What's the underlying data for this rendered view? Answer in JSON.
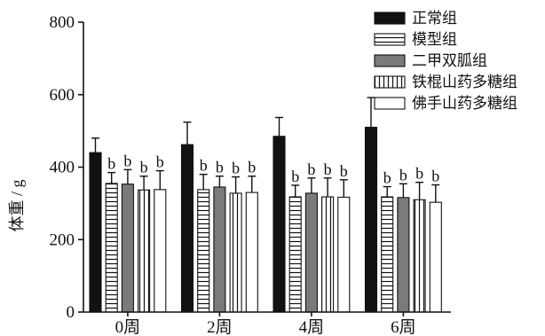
{
  "chart_data": {
    "type": "bar",
    "title": "",
    "xlabel": "",
    "ylabel": "体重 / g",
    "ylim": [
      0,
      800
    ],
    "yticks": [
      0,
      200,
      400,
      600,
      800
    ],
    "grid": false,
    "legend_position": "top-right",
    "categories": [
      "0周",
      "2周",
      "4周",
      "6周"
    ],
    "series": [
      {
        "name": "正常组",
        "pattern": "solid-black",
        "values": [
          440,
          462,
          485,
          510
        ],
        "errors": [
          40,
          62,
          52,
          82
        ],
        "labels": [
          "",
          "",
          "",
          ""
        ]
      },
      {
        "name": "模型组",
        "pattern": "hlines",
        "values": [
          355,
          338,
          318,
          318
        ],
        "errors": [
          30,
          42,
          32,
          28
        ],
        "labels": [
          "b",
          "b",
          "b",
          "b"
        ]
      },
      {
        "name": "二甲双胍组",
        "pattern": "solid-gray",
        "values": [
          353,
          345,
          328,
          316
        ],
        "errors": [
          40,
          30,
          42,
          38
        ],
        "labels": [
          "b",
          "b",
          "b",
          "b"
        ]
      },
      {
        "name": "铁棍山药多糖组",
        "pattern": "vlines",
        "values": [
          337,
          328,
          318,
          310
        ],
        "errors": [
          38,
          45,
          52,
          48
        ],
        "labels": [
          "b",
          "b",
          "b",
          "b"
        ]
      },
      {
        "name": "佛手山药多糖组",
        "pattern": "white",
        "values": [
          338,
          330,
          317,
          303
        ],
        "errors": [
          52,
          45,
          48,
          48
        ],
        "labels": [
          "b",
          "b",
          "b",
          "b"
        ]
      }
    ]
  }
}
